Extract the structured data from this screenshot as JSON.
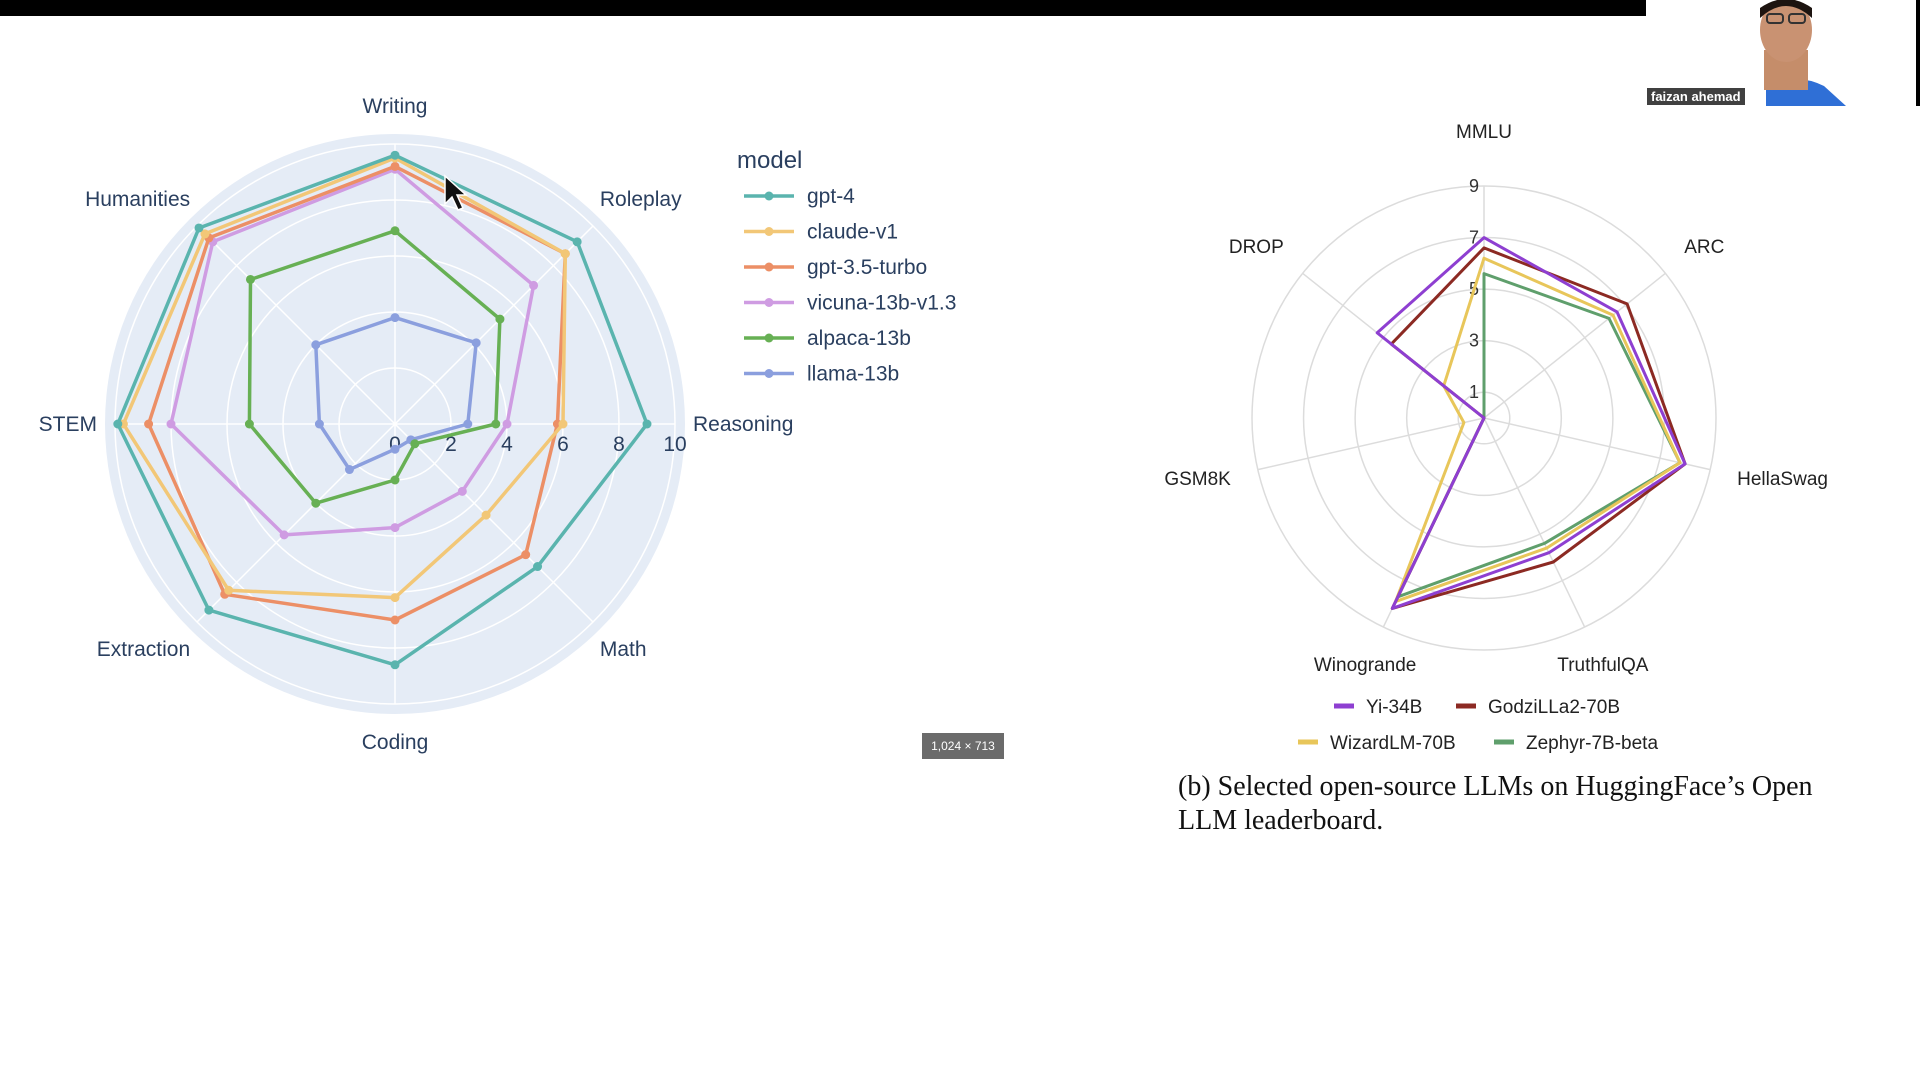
{
  "webcam": {
    "name": "faizan ahemad"
  },
  "badge": {
    "text": "1,024 × 713"
  },
  "caption": {
    "text": "(b) Selected open-source LLMs on HuggingFace’s Open LLM leaderboard."
  },
  "chart_data": [
    {
      "type": "radar",
      "legend_title": "model",
      "categories": [
        "Writing",
        "Roleplay",
        "Reasoning",
        "Math",
        "Coding",
        "Extraction",
        "STEM",
        "Humanities"
      ],
      "radial_ticks": [
        "0",
        "2",
        "4",
        "6",
        "8",
        "10"
      ],
      "rmax": 10,
      "grid": true,
      "legend_position": "top-right",
      "series": [
        {
          "name": "gpt-4",
          "color": "#5ab4ae",
          "values": [
            9.6,
            9.2,
            9.0,
            7.2,
            8.6,
            9.4,
            9.9,
            9.9
          ]
        },
        {
          "name": "claude-v1",
          "color": "#f2c777",
          "values": [
            9.5,
            8.6,
            6.0,
            4.6,
            6.2,
            8.4,
            9.7,
            9.6
          ]
        },
        {
          "name": "gpt-3.5-turbo",
          "color": "#ec8f66",
          "values": [
            9.2,
            8.6,
            5.8,
            6.6,
            7.0,
            8.6,
            8.8,
            9.4
          ]
        },
        {
          "name": "vicuna-13b-v1.3",
          "color": "#cf9ce2",
          "values": [
            9.1,
            7.0,
            4.0,
            3.4,
            3.7,
            5.6,
            8.0,
            9.2
          ]
        },
        {
          "name": "alpaca-13b",
          "color": "#67b054",
          "values": [
            6.9,
            5.3,
            3.6,
            1.0,
            2.0,
            4.0,
            5.2,
            7.3
          ]
        },
        {
          "name": "llama-13b",
          "color": "#8b9fde",
          "values": [
            3.8,
            4.1,
            2.6,
            0.8,
            0.9,
            2.3,
            2.7,
            4.0
          ]
        }
      ]
    },
    {
      "type": "radar",
      "categories": [
        "MMLU",
        "ARC",
        "HellaSwag",
        "TruthfulQA",
        "Winogrande",
        "GSM8K",
        "DROP"
      ],
      "radial_ticks": [
        "1",
        "3",
        "5",
        "7",
        "9"
      ],
      "rmax": 9,
      "grid": true,
      "legend_position": "bottom",
      "series": [
        {
          "name": "Yi-34B",
          "color": "#8e3fd1",
          "values": [
            7.0,
            6.6,
            8.0,
            5.8,
            8.2,
            0.0,
            5.3
          ]
        },
        {
          "name": "GodziLLa2-70B",
          "color": "#8c2a23",
          "values": [
            6.6,
            7.1,
            8.0,
            6.2,
            8.2,
            0.0,
            4.6
          ]
        },
        {
          "name": "WizardLM-70B",
          "color": "#e8c65a",
          "values": [
            6.2,
            6.4,
            7.8,
            5.6,
            7.9,
            0.8,
            2.0
          ]
        },
        {
          "name": "Zephyr-7B-beta",
          "color": "#5f9f6c",
          "values": [
            5.6,
            6.2,
            7.8,
            5.4,
            7.7,
            0.0,
            0.0
          ]
        }
      ]
    }
  ]
}
